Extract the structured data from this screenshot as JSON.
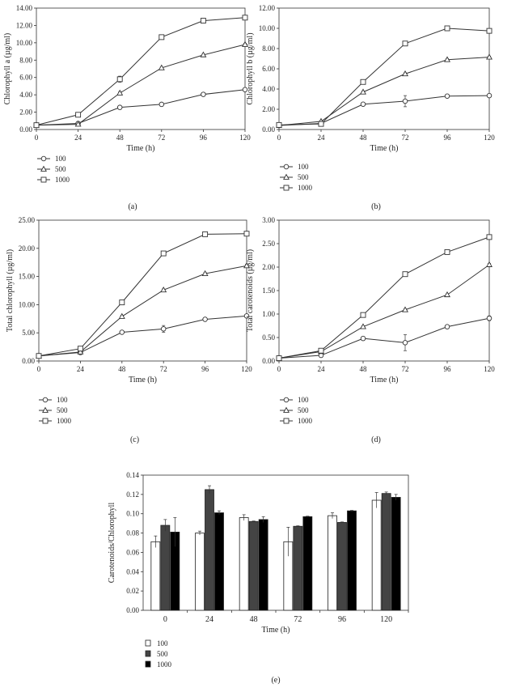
{
  "chart_data": [
    {
      "type": "line",
      "panel_label": "(a)",
      "ylabel": "Chlorophyll a (µg/ml)",
      "xlabel": "Time (h)",
      "x": [
        0,
        24,
        48,
        72,
        96,
        120
      ],
      "xlim": [
        0,
        120
      ],
      "ylim": [
        0,
        14
      ],
      "ytick_step": 2,
      "ytick_decimals": 2,
      "series": [
        {
          "name": "100",
          "marker": "circle",
          "values": [
            0.5,
            0.7,
            2.55,
            2.9,
            4.05,
            4.6
          ],
          "errors": [
            0.05,
            0.05,
            0.1,
            0.1,
            0.1,
            0.1
          ]
        },
        {
          "name": "500",
          "marker": "triangle",
          "values": [
            0.5,
            0.6,
            4.2,
            7.1,
            8.6,
            9.8
          ],
          "errors": [
            0.05,
            0.05,
            0.15,
            0.1,
            0.1,
            0.15
          ]
        },
        {
          "name": "1000",
          "marker": "square",
          "values": [
            0.5,
            1.7,
            5.8,
            10.65,
            12.55,
            12.9
          ],
          "errors": [
            0.05,
            0.1,
            0.35,
            0.1,
            0.1,
            0.1
          ]
        }
      ],
      "legend": [
        "100",
        "500",
        "1000"
      ]
    },
    {
      "type": "line",
      "panel_label": "(b)",
      "ylabel": "Chlorophyll b (µg/ml)",
      "xlabel": "Time (h)",
      "x": [
        0,
        24,
        48,
        72,
        96,
        120
      ],
      "xlim": [
        0,
        120
      ],
      "ylim": [
        0,
        12
      ],
      "ytick_step": 2,
      "ytick_decimals": 2,
      "series": [
        {
          "name": "100",
          "marker": "circle",
          "values": [
            0.4,
            0.6,
            2.5,
            2.8,
            3.3,
            3.35
          ],
          "errors": [
            0.05,
            0.05,
            0.1,
            0.55,
            0.1,
            0.1
          ]
        },
        {
          "name": "500",
          "marker": "triangle",
          "values": [
            0.4,
            0.8,
            3.7,
            5.5,
            6.9,
            7.15
          ],
          "errors": [
            0.05,
            0.05,
            0.1,
            0.1,
            0.1,
            0.1
          ]
        },
        {
          "name": "1000",
          "marker": "square",
          "values": [
            0.45,
            0.55,
            4.7,
            8.5,
            10.0,
            9.75
          ],
          "errors": [
            0.05,
            0.05,
            0.1,
            0.1,
            0.1,
            0.1
          ]
        }
      ],
      "legend": [
        "100",
        "500",
        "1000"
      ]
    },
    {
      "type": "line",
      "panel_label": "(c)",
      "ylabel": "Total chlorophyll (µg/ml)",
      "xlabel": "Time (h)",
      "x": [
        0,
        24,
        48,
        72,
        96,
        120
      ],
      "xlim": [
        0,
        120
      ],
      "ylim": [
        0,
        25
      ],
      "ytick_step": 5,
      "ytick_decimals": 2,
      "series": [
        {
          "name": "100",
          "marker": "circle",
          "values": [
            0.9,
            1.5,
            5.1,
            5.7,
            7.4,
            8.0
          ],
          "errors": [
            0.1,
            0.1,
            0.2,
            0.6,
            0.2,
            0.2
          ]
        },
        {
          "name": "500",
          "marker": "triangle",
          "values": [
            0.9,
            1.6,
            7.9,
            12.6,
            15.5,
            16.9
          ],
          "errors": [
            0.1,
            0.1,
            0.2,
            0.2,
            0.2,
            0.3
          ]
        },
        {
          "name": "1000",
          "marker": "square",
          "values": [
            0.9,
            2.2,
            10.4,
            19.1,
            22.5,
            22.6
          ],
          "errors": [
            0.1,
            0.1,
            0.3,
            0.2,
            0.2,
            0.2
          ]
        }
      ],
      "legend": [
        "100",
        "500",
        "1000"
      ]
    },
    {
      "type": "line",
      "panel_label": "(d)",
      "ylabel": "Total carotenoids (µg/ml)",
      "xlabel": "Time (h)",
      "x": [
        0,
        24,
        48,
        72,
        96,
        120
      ],
      "xlim": [
        0,
        120
      ],
      "ylim": [
        0,
        3
      ],
      "ytick_step": 0.5,
      "ytick_decimals": 2,
      "series": [
        {
          "name": "100",
          "marker": "circle",
          "values": [
            0.06,
            0.12,
            0.48,
            0.39,
            0.73,
            0.91
          ],
          "errors": [
            0.01,
            0.01,
            0.02,
            0.17,
            0.02,
            0.05
          ]
        },
        {
          "name": "500",
          "marker": "triangle",
          "values": [
            0.06,
            0.2,
            0.73,
            1.09,
            1.41,
            2.05
          ],
          "errors": [
            0.01,
            0.01,
            0.02,
            0.02,
            0.02,
            0.03
          ]
        },
        {
          "name": "1000",
          "marker": "square",
          "values": [
            0.06,
            0.22,
            0.98,
            1.85,
            2.32,
            2.64
          ],
          "errors": [
            0.01,
            0.01,
            0.04,
            0.02,
            0.02,
            0.03
          ]
        }
      ],
      "legend": [
        "100",
        "500",
        "1000"
      ]
    },
    {
      "type": "bar",
      "panel_label": "(e)",
      "ylabel": "Carotenoids/Chlorophyll",
      "xlabel": "Time (h)",
      "categories": [
        "0",
        "24",
        "48",
        "72",
        "96",
        "120"
      ],
      "ylim": [
        0,
        0.14
      ],
      "ytick_step": 0.02,
      "ytick_decimals": 2,
      "series": [
        {
          "name": "100",
          "color": "#ffffff",
          "values": [
            0.071,
            0.08,
            0.096,
            0.071,
            0.098,
            0.114
          ],
          "errors": [
            0.006,
            0.002,
            0.003,
            0.015,
            0.003,
            0.008
          ]
        },
        {
          "name": "500",
          "color": "#444444",
          "values": [
            0.088,
            0.125,
            0.092,
            0.087,
            0.091,
            0.121
          ],
          "errors": [
            0.006,
            0.004,
            0.0005,
            0.0005,
            0.0005,
            0.0015
          ]
        },
        {
          "name": "1000",
          "color": "#000000",
          "values": [
            0.081,
            0.101,
            0.094,
            0.097,
            0.103,
            0.117
          ],
          "errors": [
            0.015,
            0.002,
            0.003,
            0.0005,
            0.0005,
            0.003
          ]
        }
      ],
      "legend": [
        "100",
        "500",
        "1000"
      ]
    }
  ]
}
